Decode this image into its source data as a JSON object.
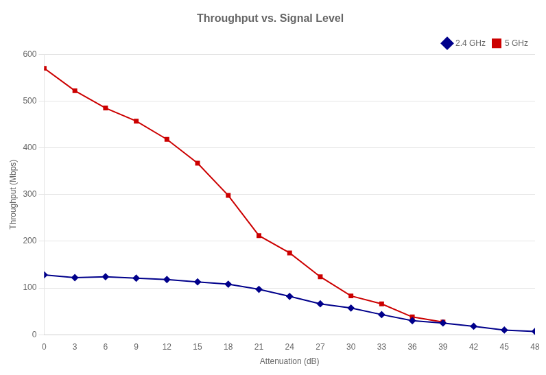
{
  "chart_data": {
    "type": "line",
    "title": "Throughput vs. Signal Level",
    "xlabel": "Attenuation (dB)",
    "ylabel": "Throughput (Mbps)",
    "x": [
      0,
      3,
      6,
      9,
      12,
      15,
      18,
      21,
      24,
      27,
      30,
      33,
      36,
      39,
      42,
      45,
      48
    ],
    "series": [
      {
        "name": "2.4 GHz",
        "color": "#00008B",
        "marker": "diamond",
        "values": [
          128,
          122,
          124,
          121,
          118,
          113,
          108,
          97,
          82,
          66,
          57,
          43,
          30,
          25,
          18,
          10,
          7
        ]
      },
      {
        "name": "5 GHz",
        "color": "#CC0000",
        "marker": "square",
        "values": [
          570,
          522,
          485,
          457,
          418,
          367,
          298,
          212,
          175,
          124,
          83,
          66,
          38,
          27,
          null,
          null,
          null
        ]
      }
    ],
    "xlim": [
      0,
      48
    ],
    "xticks": [
      0,
      3,
      6,
      9,
      12,
      15,
      18,
      21,
      24,
      27,
      30,
      33,
      36,
      39,
      42,
      45,
      48
    ],
    "ylim": [
      0,
      600
    ],
    "yticks": [
      0,
      100,
      200,
      300,
      400,
      500,
      600
    ],
    "grid": "y",
    "legend": "upper right"
  }
}
